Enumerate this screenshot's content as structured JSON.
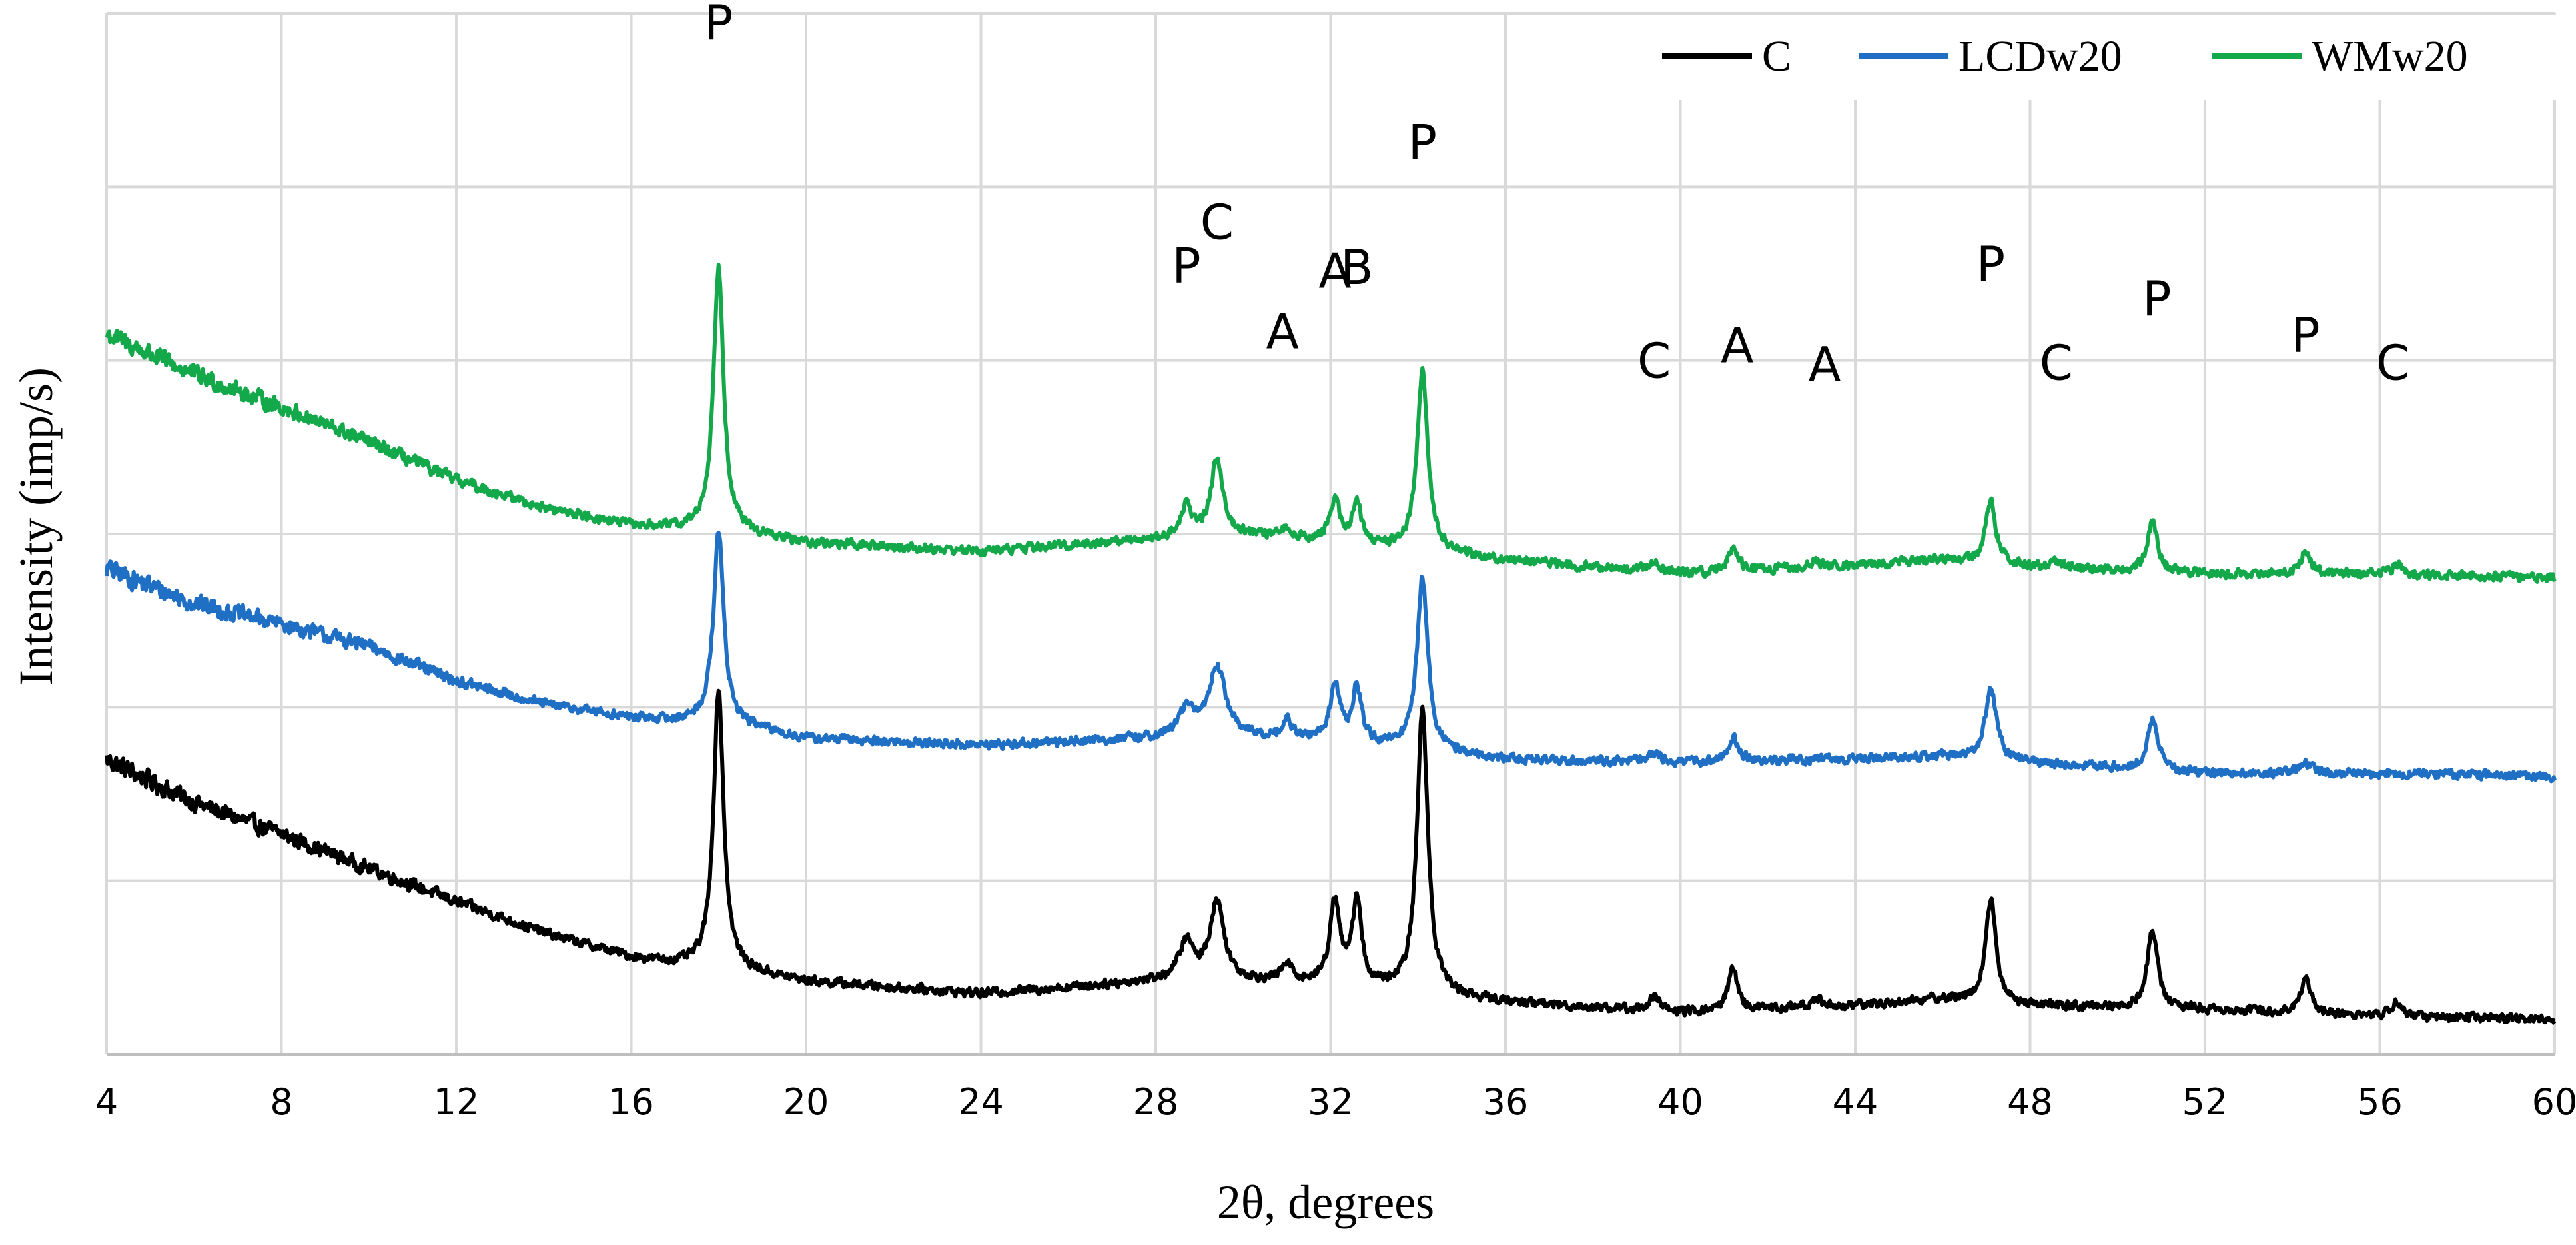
{
  "chart_data": {
    "type": "line",
    "title": "",
    "xlabel": "2θ, degrees",
    "ylabel": "Intensity (imp/s)",
    "xlim": [
      4,
      60
    ],
    "ylim": [
      0,
      6
    ],
    "x_ticks": [
      4,
      8,
      12,
      16,
      20,
      24,
      28,
      32,
      36,
      40,
      44,
      48,
      52,
      56,
      60
    ],
    "x_tick_labels": [
      "4",
      "8",
      "12",
      "16",
      "20",
      "24",
      "28",
      "32",
      "36",
      "40",
      "44",
      "48",
      "52",
      "56",
      "60"
    ],
    "grid": true,
    "legend_position": "top-right",
    "series": [
      {
        "name": "C",
        "color": "#000000",
        "offset": 0,
        "background": [
          [
            4,
            1.7
          ],
          [
            6,
            1.45
          ],
          [
            8,
            1.27
          ],
          [
            10,
            1.07
          ],
          [
            12,
            0.88
          ],
          [
            14,
            0.7
          ],
          [
            16,
            0.56
          ],
          [
            17,
            0.52
          ],
          [
            18,
            0.5
          ],
          [
            20,
            0.42
          ],
          [
            24,
            0.35
          ],
          [
            28,
            0.42
          ],
          [
            30,
            0.42
          ],
          [
            32,
            0.4
          ],
          [
            36,
            0.3
          ],
          [
            40,
            0.24
          ],
          [
            44,
            0.28
          ],
          [
            46,
            0.32
          ],
          [
            48,
            0.28
          ],
          [
            52,
            0.26
          ],
          [
            56,
            0.22
          ],
          [
            60,
            0.2
          ]
        ],
        "peaks": [
          [
            18.0,
            1.6,
            0.14
          ],
          [
            28.7,
            0.22,
            0.2
          ],
          [
            29.4,
            0.45,
            0.2
          ],
          [
            31.0,
            0.1,
            0.15
          ],
          [
            32.1,
            0.48,
            0.14
          ],
          [
            32.6,
            0.5,
            0.12
          ],
          [
            34.1,
            1.64,
            0.15
          ],
          [
            39.4,
            0.08,
            0.15
          ],
          [
            41.2,
            0.26,
            0.12
          ],
          [
            43.1,
            0.05,
            0.15
          ],
          [
            47.1,
            0.6,
            0.14
          ],
          [
            50.8,
            0.45,
            0.14
          ],
          [
            54.3,
            0.2,
            0.14
          ],
          [
            56.4,
            0.08,
            0.15
          ]
        ]
      },
      {
        "name": "LCDw20",
        "color": "#1f6fc5",
        "offset": 1.5,
        "background": [
          [
            4,
            1.3
          ],
          [
            6,
            1.1
          ],
          [
            8,
            0.98
          ],
          [
            10,
            0.85
          ],
          [
            12,
            0.65
          ],
          [
            14,
            0.52
          ],
          [
            16,
            0.44
          ],
          [
            17,
            0.42
          ],
          [
            18,
            0.42
          ],
          [
            20,
            0.32
          ],
          [
            24,
            0.28
          ],
          [
            28,
            0.32
          ],
          [
            30,
            0.32
          ],
          [
            32,
            0.3
          ],
          [
            36,
            0.2
          ],
          [
            40,
            0.18
          ],
          [
            44,
            0.2
          ],
          [
            46,
            0.22
          ],
          [
            48,
            0.18
          ],
          [
            52,
            0.12
          ],
          [
            56,
            0.12
          ],
          [
            60,
            0.1
          ]
        ],
        "peaks": [
          [
            18.0,
            1.1,
            0.14
          ],
          [
            28.7,
            0.16,
            0.2
          ],
          [
            29.4,
            0.4,
            0.25
          ],
          [
            31.0,
            0.1,
            0.15
          ],
          [
            32.1,
            0.32,
            0.14
          ],
          [
            32.6,
            0.32,
            0.12
          ],
          [
            34.1,
            1.0,
            0.15
          ],
          [
            39.4,
            0.05,
            0.15
          ],
          [
            41.2,
            0.14,
            0.14
          ],
          [
            47.1,
            0.42,
            0.15
          ],
          [
            50.8,
            0.28,
            0.15
          ],
          [
            54.3,
            0.06,
            0.15
          ]
        ]
      },
      {
        "name": "WMw20",
        "color": "#13a84a",
        "offset": 2.75,
        "background": [
          [
            4,
            1.4
          ],
          [
            6,
            1.17
          ],
          [
            8,
            0.98
          ],
          [
            10,
            0.78
          ],
          [
            12,
            0.56
          ],
          [
            14,
            0.4
          ],
          [
            16,
            0.3
          ],
          [
            17,
            0.28
          ],
          [
            18,
            0.27
          ],
          [
            20,
            0.2
          ],
          [
            24,
            0.15
          ],
          [
            28,
            0.22
          ],
          [
            30,
            0.24
          ],
          [
            32,
            0.2
          ],
          [
            36,
            0.1
          ],
          [
            40,
            0.02
          ],
          [
            44,
            0.07
          ],
          [
            46,
            0.1
          ],
          [
            48,
            0.06
          ],
          [
            52,
            0.02
          ],
          [
            56,
            0.02
          ],
          [
            60,
            0.0
          ]
        ],
        "peaks": [
          [
            18.0,
            1.52,
            0.14
          ],
          [
            28.7,
            0.18,
            0.15
          ],
          [
            29.4,
            0.44,
            0.17
          ],
          [
            31.0,
            0.06,
            0.15
          ],
          [
            32.1,
            0.24,
            0.14
          ],
          [
            32.6,
            0.24,
            0.12
          ],
          [
            34.1,
            1.04,
            0.15
          ],
          [
            39.4,
            0.06,
            0.15
          ],
          [
            41.2,
            0.14,
            0.13
          ],
          [
            43.1,
            0.03,
            0.15
          ],
          [
            47.1,
            0.36,
            0.14
          ],
          [
            48.6,
            0.03,
            0.15
          ],
          [
            50.8,
            0.28,
            0.14
          ],
          [
            54.3,
            0.13,
            0.14
          ],
          [
            56.4,
            0.05,
            0.15
          ]
        ]
      }
    ],
    "annotations": [
      {
        "text": "P",
        "x": 18.0,
        "y": 5.85
      },
      {
        "text": "P",
        "x": 28.7,
        "y": 4.45
      },
      {
        "text": "C",
        "x": 29.4,
        "y": 4.7
      },
      {
        "text": "A",
        "x": 30.9,
        "y": 4.07
      },
      {
        "text": "A",
        "x": 32.1,
        "y": 4.42
      },
      {
        "text": "B",
        "x": 32.6,
        "y": 4.44
      },
      {
        "text": "P",
        "x": 34.1,
        "y": 5.16
      },
      {
        "text": "C",
        "x": 39.4,
        "y": 3.9
      },
      {
        "text": "A",
        "x": 41.3,
        "y": 3.99
      },
      {
        "text": "A",
        "x": 43.3,
        "y": 3.88
      },
      {
        "text": "P",
        "x": 47.1,
        "y": 4.46
      },
      {
        "text": "C",
        "x": 48.6,
        "y": 3.89
      },
      {
        "text": "P",
        "x": 50.9,
        "y": 4.26
      },
      {
        "text": "P",
        "x": 54.3,
        "y": 4.05
      },
      {
        "text": "C",
        "x": 56.3,
        "y": 3.89
      }
    ]
  }
}
